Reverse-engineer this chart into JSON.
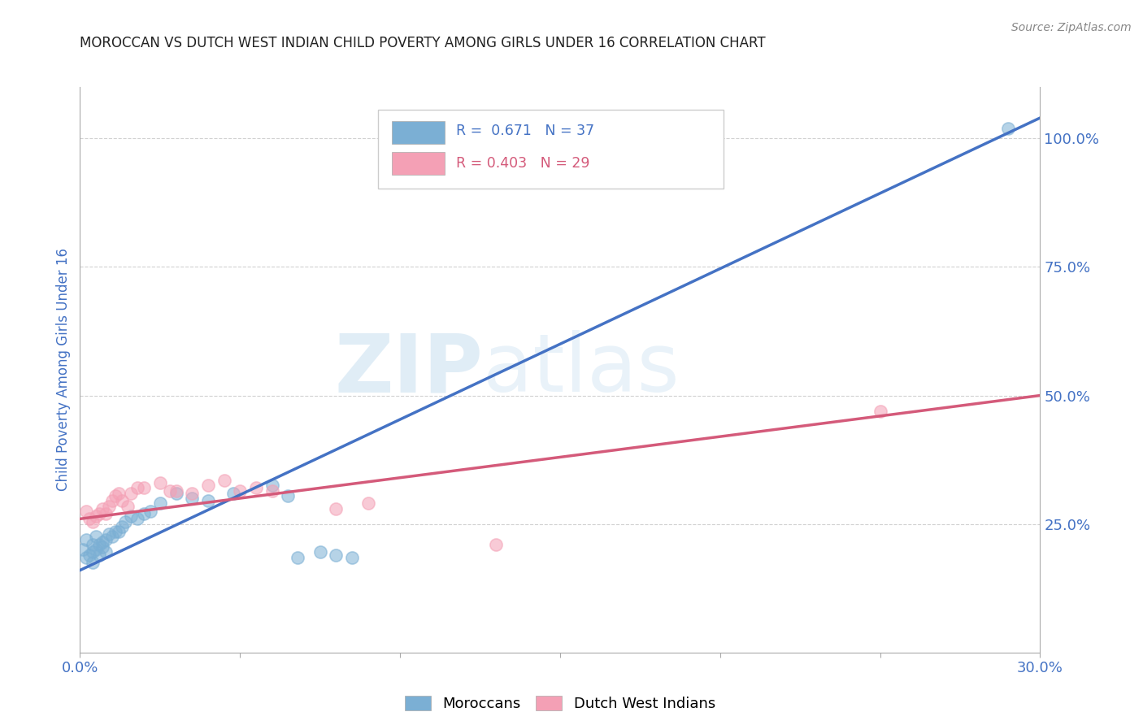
{
  "title": "MOROCCAN VS DUTCH WEST INDIAN CHILD POVERTY AMONG GIRLS UNDER 16 CORRELATION CHART",
  "source": "Source: ZipAtlas.com",
  "ylabel": "Child Poverty Among Girls Under 16",
  "xlim": [
    0.0,
    0.3
  ],
  "ylim": [
    0.0,
    1.1
  ],
  "xticks": [
    0.0,
    0.05,
    0.1,
    0.15,
    0.2,
    0.25,
    0.3
  ],
  "yticks_right": [
    0.25,
    0.5,
    0.75,
    1.0
  ],
  "ytick_labels_right": [
    "25.0%",
    "50.0%",
    "75.0%",
    "100.0%"
  ],
  "background_color": "#ffffff",
  "watermark_zip": "ZIP",
  "watermark_atlas": "atlas",
  "blue_color": "#7bafd4",
  "pink_color": "#f4a0b5",
  "blue_scatter": [
    [
      0.001,
      0.2
    ],
    [
      0.002,
      0.22
    ],
    [
      0.002,
      0.185
    ],
    [
      0.003,
      0.19
    ],
    [
      0.004,
      0.195
    ],
    [
      0.004,
      0.21
    ],
    [
      0.004,
      0.175
    ],
    [
      0.005,
      0.2
    ],
    [
      0.005,
      0.225
    ],
    [
      0.006,
      0.19
    ],
    [
      0.006,
      0.21
    ],
    [
      0.007,
      0.215
    ],
    [
      0.007,
      0.205
    ],
    [
      0.008,
      0.22
    ],
    [
      0.008,
      0.195
    ],
    [
      0.009,
      0.23
    ],
    [
      0.01,
      0.225
    ],
    [
      0.011,
      0.235
    ],
    [
      0.012,
      0.235
    ],
    [
      0.013,
      0.245
    ],
    [
      0.014,
      0.255
    ],
    [
      0.016,
      0.265
    ],
    [
      0.018,
      0.26
    ],
    [
      0.02,
      0.27
    ],
    [
      0.022,
      0.275
    ],
    [
      0.025,
      0.29
    ],
    [
      0.03,
      0.31
    ],
    [
      0.035,
      0.3
    ],
    [
      0.04,
      0.295
    ],
    [
      0.048,
      0.31
    ],
    [
      0.06,
      0.325
    ],
    [
      0.065,
      0.305
    ],
    [
      0.068,
      0.185
    ],
    [
      0.075,
      0.195
    ],
    [
      0.08,
      0.19
    ],
    [
      0.085,
      0.185
    ],
    [
      0.29,
      1.02
    ]
  ],
  "pink_scatter": [
    [
      0.002,
      0.275
    ],
    [
      0.003,
      0.26
    ],
    [
      0.004,
      0.255
    ],
    [
      0.005,
      0.265
    ],
    [
      0.006,
      0.27
    ],
    [
      0.007,
      0.28
    ],
    [
      0.008,
      0.27
    ],
    [
      0.009,
      0.285
    ],
    [
      0.01,
      0.295
    ],
    [
      0.011,
      0.305
    ],
    [
      0.012,
      0.31
    ],
    [
      0.013,
      0.295
    ],
    [
      0.015,
      0.285
    ],
    [
      0.016,
      0.31
    ],
    [
      0.018,
      0.32
    ],
    [
      0.02,
      0.32
    ],
    [
      0.025,
      0.33
    ],
    [
      0.028,
      0.315
    ],
    [
      0.03,
      0.315
    ],
    [
      0.035,
      0.31
    ],
    [
      0.04,
      0.325
    ],
    [
      0.045,
      0.335
    ],
    [
      0.05,
      0.315
    ],
    [
      0.055,
      0.32
    ],
    [
      0.06,
      0.315
    ],
    [
      0.08,
      0.28
    ],
    [
      0.09,
      0.29
    ],
    [
      0.13,
      0.21
    ],
    [
      0.25,
      0.47
    ]
  ],
  "blue_line_x": [
    0.0,
    0.3
  ],
  "blue_line_y": [
    0.16,
    1.04
  ],
  "pink_line_x": [
    0.0,
    0.3
  ],
  "pink_line_y": [
    0.26,
    0.5
  ],
  "legend_R_blue": "0.671",
  "legend_N_blue": "37",
  "legend_R_pink": "0.403",
  "legend_N_pink": "29",
  "title_color": "#222222",
  "blue_text_color": "#4472c4",
  "pink_text_color": "#d45a7a",
  "axis_color": "#4472c4",
  "grid_color": "#cccccc",
  "spine_color": "#aaaaaa"
}
